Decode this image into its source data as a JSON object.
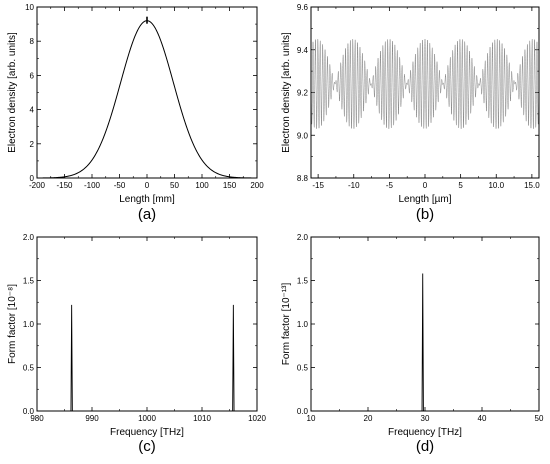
{
  "chart_data": [
    {
      "type": "line",
      "caption": "(a)",
      "xlabel": "Length [mm]",
      "ylabel": "Electron density [arb. units]",
      "xlim": [
        -200,
        200
      ],
      "ylim": [
        0,
        10
      ],
      "xticks": [
        -200,
        -150,
        -100,
        -50,
        0,
        50,
        100,
        150,
        200
      ],
      "yticks": [
        0,
        2,
        4,
        6,
        8,
        10
      ],
      "series": [
        {
          "shape": "gaussian",
          "peak": 9.2,
          "center": 0,
          "sigma": 48,
          "color": "#000000"
        }
      ]
    },
    {
      "type": "line",
      "caption": "(b)",
      "xlabel": "Length [µm]",
      "ylabel": "Electron density [arb. units]",
      "xlim": [
        -16,
        16
      ],
      "ylim": [
        8.8,
        9.6
      ],
      "xticks": [
        -15,
        -10,
        -5,
        0,
        5,
        10,
        15
      ],
      "yticks": [
        8.8,
        9.0,
        9.2,
        9.4,
        9.6
      ],
      "series": [
        {
          "shape": "beat",
          "mean": 9.24,
          "amplitude": 0.21,
          "envelope_period": 10.1,
          "carrier_period": 0.338,
          "color": "#777777"
        }
      ]
    },
    {
      "type": "line",
      "caption": "(c)",
      "xlabel": "Frequency [THz]",
      "ylabel": "Form factor [10⁻⁸]",
      "xlim": [
        980,
        1020
      ],
      "ylim": [
        0,
        2.0
      ],
      "xticks": [
        980,
        990,
        1000,
        1010,
        1020
      ],
      "yticks": [
        0.0,
        0.5,
        1.0,
        1.5,
        2.0
      ],
      "series": [
        {
          "shape": "spikes",
          "x": [
            986.3,
            1015.7
          ],
          "y": [
            1.22,
            1.22
          ],
          "color": "#000000"
        }
      ]
    },
    {
      "type": "line",
      "caption": "(d)",
      "xlabel": "Frequency [THz]",
      "ylabel": "Form factor [10⁻¹³]",
      "xlim": [
        10,
        50
      ],
      "ylim": [
        0,
        2.0
      ],
      "xticks": [
        10,
        20,
        30,
        40,
        50
      ],
      "yticks": [
        0.0,
        0.5,
        1.0,
        1.5,
        2.0
      ],
      "series": [
        {
          "shape": "spikes",
          "x": [
            29.6
          ],
          "y": [
            1.58
          ],
          "color": "#000000"
        }
      ]
    }
  ]
}
